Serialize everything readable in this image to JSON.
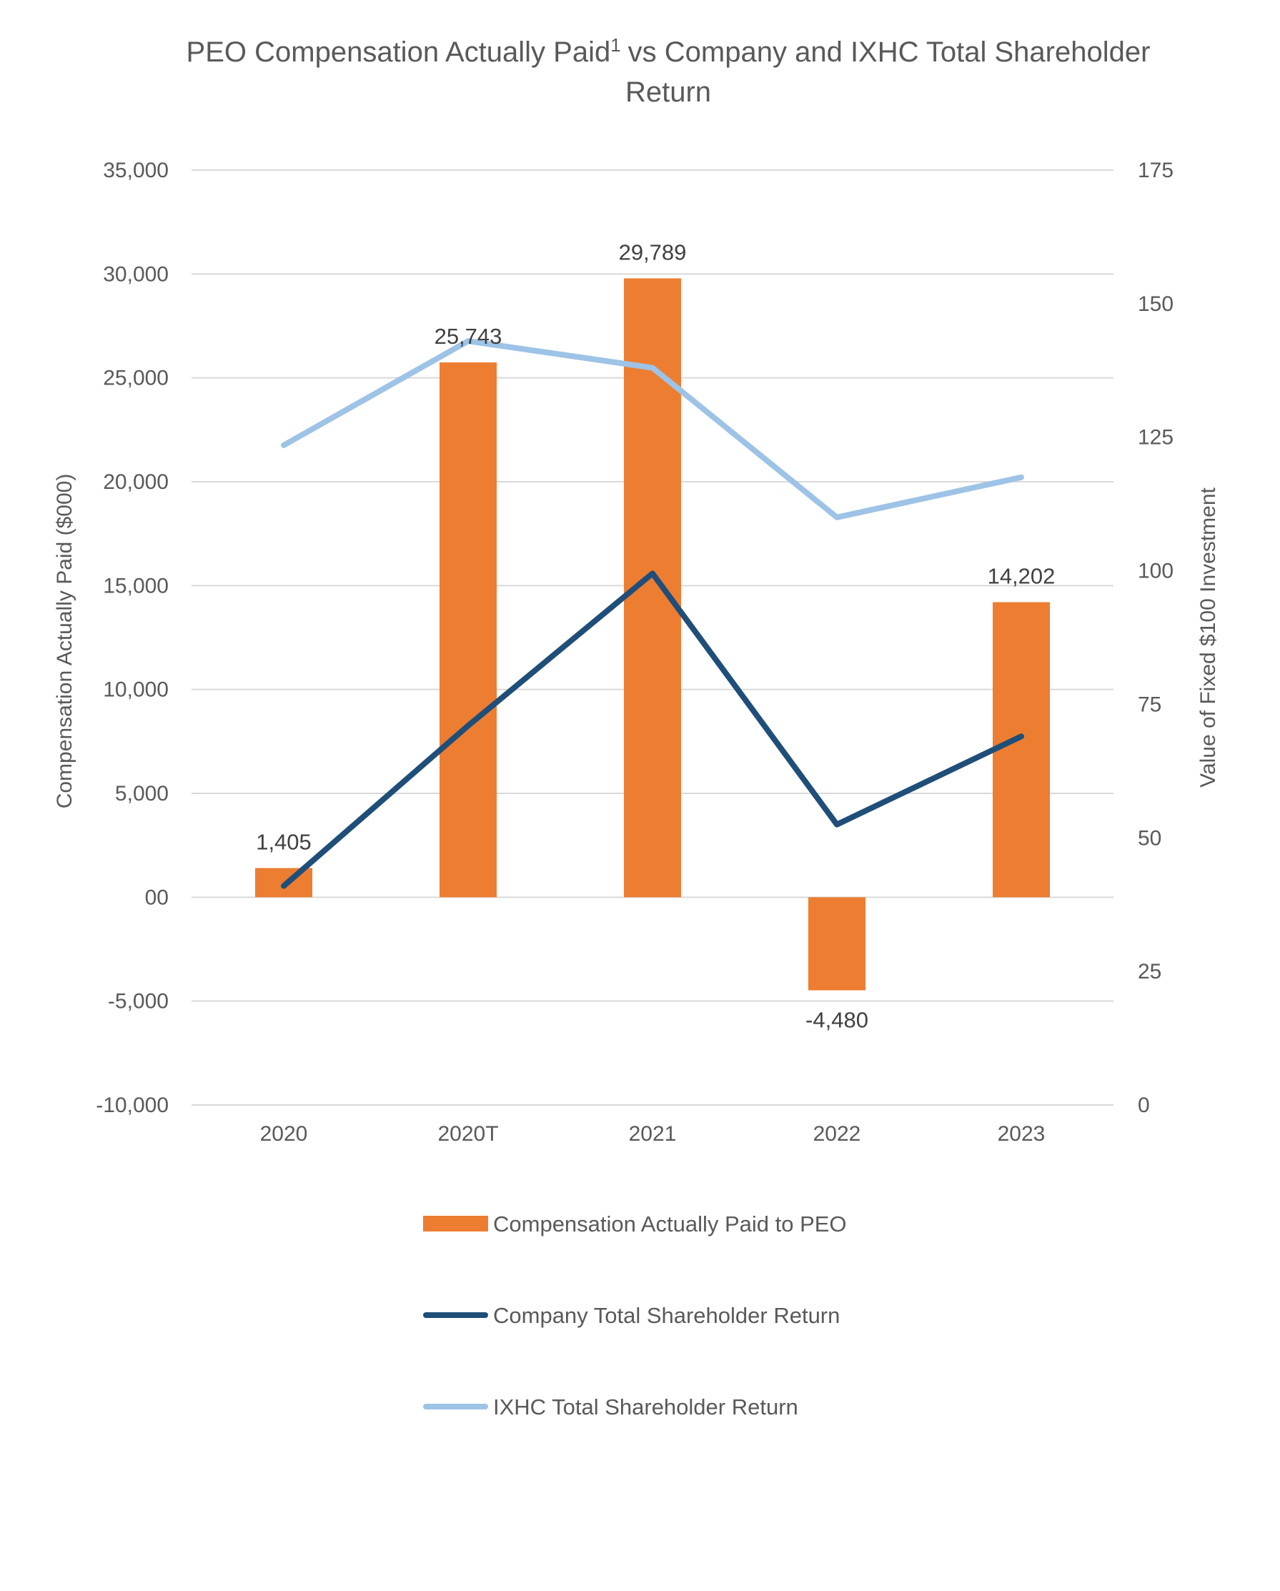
{
  "chart_data": {
    "type": "bar",
    "title": "PEO Compensation Actually Paid",
    "title_superscript": "1",
    "title_rest": "vs Company and IXHC Total Shareholder",
    "title_line2": "Return",
    "categories": [
      "2020",
      "2020T",
      "2021",
      "2022",
      "2023"
    ],
    "bar_series": {
      "name": "Compensation Actually Paid to PEO",
      "color": "#ED7D31",
      "values": [
        1405,
        25743,
        29789,
        -4480,
        14202
      ],
      "labels": [
        "1,405",
        "25,743",
        "29,789",
        "-4,480",
        "14,202"
      ]
    },
    "line_series": [
      {
        "name": "Company Total Shareholder Return",
        "color": "#1F4E79",
        "axis": "right",
        "values": [
          41,
          71,
          99.5,
          52.5,
          69
        ]
      },
      {
        "name": "IXHC Total Shareholder Return",
        "color": "#9DC3E6",
        "axis": "right",
        "values": [
          123.5,
          143,
          138,
          110,
          117.5
        ]
      }
    ],
    "y_left": {
      "label": "Compensation Actually Paid ($000)",
      "min": -10000,
      "max": 35000,
      "ticks": [
        35000,
        30000,
        25000,
        20000,
        15000,
        10000,
        5000,
        0,
        -5000,
        -10000
      ],
      "tick_labels": [
        "35,000",
        "30,000",
        "25,000",
        "20,000",
        "15,000",
        "10,000",
        "5,000",
        "00",
        "-5,000",
        "-10,000"
      ]
    },
    "y_right": {
      "label": "Value of Fixed $100 Investment",
      "min": 0,
      "max": 175,
      "ticks": [
        175,
        150,
        125,
        100,
        75,
        50,
        25,
        0
      ],
      "tick_labels": [
        "175",
        "150",
        "125",
        "100",
        "75",
        "50",
        "25",
        "0"
      ]
    },
    "grid": true,
    "legend_position": "bottom"
  }
}
